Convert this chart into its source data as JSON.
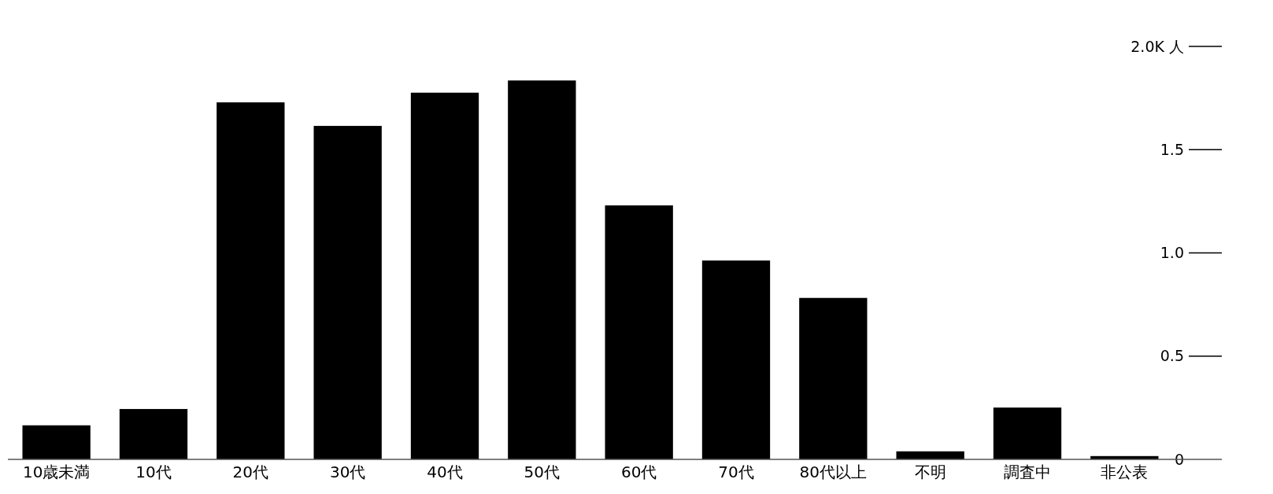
{
  "chart_data": {
    "type": "bar",
    "categories": [
      "10歳未満",
      "10代",
      "20代",
      "30代",
      "40代",
      "50代",
      "60代",
      "70代",
      "80代以上",
      "不明",
      "調査中",
      "非公表"
    ],
    "values": [
      0.165,
      0.244,
      1.729,
      1.615,
      1.776,
      1.835,
      1.23,
      0.963,
      0.782,
      0.039,
      0.251,
      0.016
    ],
    "color": "#000000",
    "ylim": [
      0,
      2
    ],
    "yticks": [
      0,
      0.5,
      {
        "value": 1,
        "label": "1.0"
      },
      1.5,
      {
        "value": 2,
        "label": "2.0K 人"
      }
    ],
    "grid": false
  }
}
